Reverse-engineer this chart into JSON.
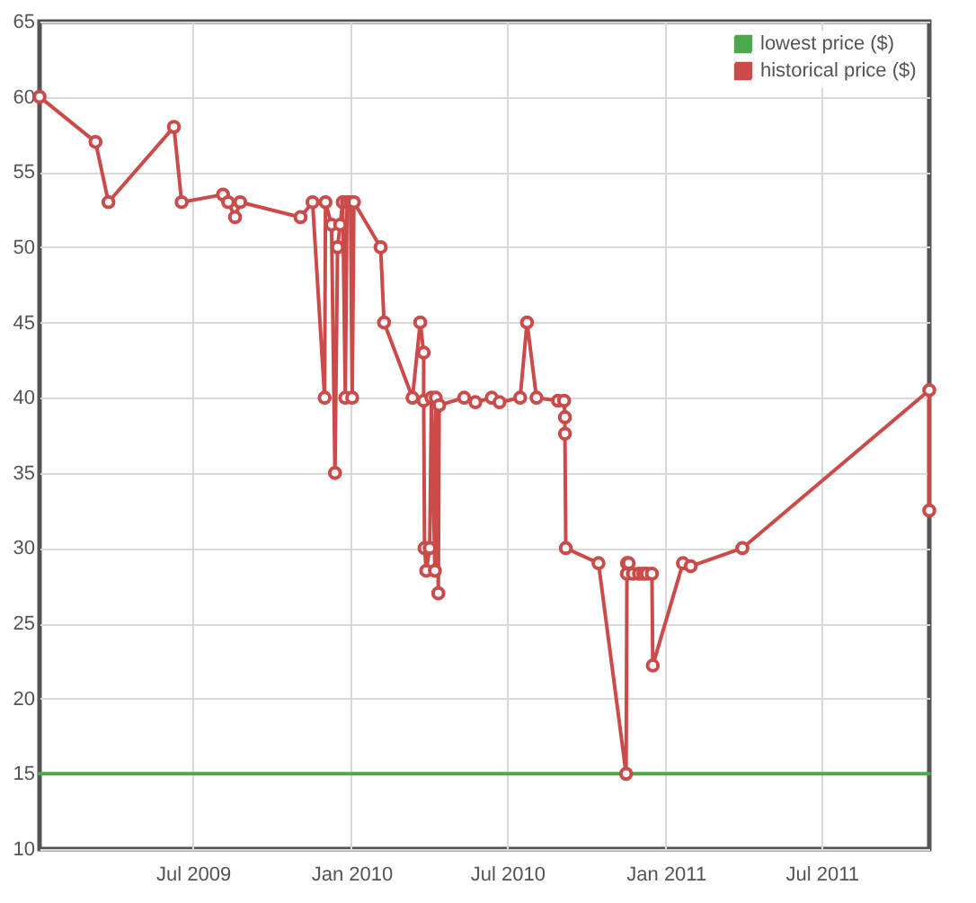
{
  "chart_data": {
    "type": "line",
    "xlim": [
      "2009-01-04",
      "2011-11-03"
    ],
    "ylim": [
      10,
      65
    ],
    "xticks": [
      {
        "value": "2009-07-01",
        "label": "Jul 2009"
      },
      {
        "value": "2010-01-01",
        "label": "Jan 2010"
      },
      {
        "value": "2010-07-01",
        "label": "Jul 2010"
      },
      {
        "value": "2011-01-01",
        "label": "Jan 2011"
      },
      {
        "value": "2011-07-01",
        "label": "Jul 2011"
      }
    ],
    "yticks": [
      10,
      15,
      20,
      25,
      30,
      35,
      40,
      45,
      50,
      55,
      60,
      65
    ],
    "grid": true,
    "legend": "top right",
    "series": [
      {
        "name": "lowest price ($)",
        "color": "#4da74d",
        "x": [
          "2009-01-04",
          "2011-11-03"
        ],
        "values": [
          15,
          15
        ]
      },
      {
        "name": "historical price ($)",
        "color": "#cb4b4b",
        "marker": "circle",
        "x": [
          "2009-01-04",
          "2009-03-10",
          "2009-03-25",
          "2009-06-09",
          "2009-06-18",
          "2009-08-05",
          "2009-08-11",
          "2009-08-19",
          "2009-08-25",
          "2009-11-03",
          "2009-11-17",
          "2009-12-01",
          "2009-12-02",
          "2009-12-09",
          "2009-12-13",
          "2009-12-16",
          "2009-12-19",
          "2009-12-22",
          "2009-12-25",
          "2009-12-27",
          "2009-12-31",
          "2010-01-02",
          "2010-01-04",
          "2010-02-04",
          "2010-02-08",
          "2010-03-13",
          "2010-03-22",
          "2010-03-26",
          "2010-03-26",
          "2010-03-27",
          "2010-03-29",
          "2010-04-02",
          "2010-04-04",
          "2010-04-08",
          "2010-04-09",
          "2010-04-12",
          "2010-04-13",
          "2010-05-12",
          "2010-05-25",
          "2010-06-13",
          "2010-06-22",
          "2010-07-16",
          "2010-07-24",
          "2010-08-04",
          "2010-08-29",
          "2010-09-05",
          "2010-09-06",
          "2010-09-06",
          "2010-09-07",
          "2010-10-15",
          "2010-11-16",
          "2010-11-17",
          "2010-11-17",
          "2010-11-19",
          "2010-11-24",
          "2010-12-01",
          "2010-12-06",
          "2010-12-10",
          "2010-12-16",
          "2010-12-17",
          "2011-01-21",
          "2011-01-30",
          "2011-03-31",
          "2011-11-03",
          "2011-11-03"
        ],
        "values": [
          60,
          57,
          53,
          58,
          53,
          53.5,
          53,
          52,
          53,
          52,
          53,
          40,
          53,
          51.5,
          35,
          50,
          51.5,
          53,
          40,
          53,
          53,
          40,
          53,
          50,
          45,
          40,
          45,
          43,
          39.8,
          30,
          28.5,
          30,
          40,
          28.5,
          40,
          27,
          39.5,
          40,
          39.7,
          40,
          39.7,
          40,
          45,
          40,
          39.8,
          39.8,
          38.7,
          37.6,
          30,
          29,
          15,
          28.3,
          29,
          29,
          28.3,
          28.3,
          28.3,
          28.3,
          28.3,
          22.2,
          29,
          28.8,
          30,
          40.5,
          32.5
        ]
      }
    ]
  }
}
